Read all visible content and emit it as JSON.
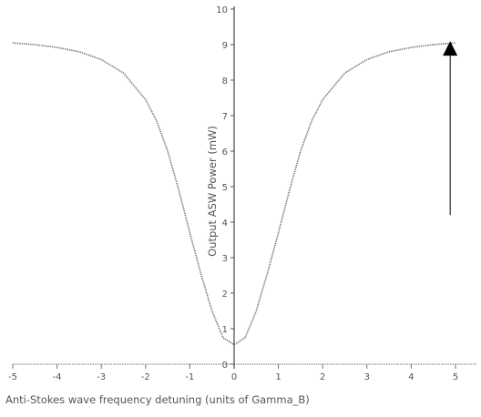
{
  "chart_data": {
    "type": "line",
    "title": "",
    "xlabel": "Anti-Stokes wave frequency detuning (units of Gamma_B)",
    "ylabel": "Output ASW Power (mW)",
    "xlim": [
      -5,
      5
    ],
    "ylim": [
      0,
      10
    ],
    "x_ticks": [
      -5,
      -4,
      -3,
      -2,
      -1,
      0,
      1,
      2,
      3,
      4,
      5
    ],
    "x_tick_labels": [
      "-5",
      "-4",
      "-3",
      "-2",
      "-1",
      "0",
      "1",
      "2",
      "3",
      "4",
      "5"
    ],
    "y_ticks": [
      0,
      1,
      2,
      3,
      4,
      5,
      6,
      7,
      8,
      9,
      10
    ],
    "y_tick_labels": [
      "0",
      "1",
      "2",
      "3",
      "4",
      "5",
      "6",
      "7",
      "8",
      "9",
      "10"
    ],
    "grid": false,
    "series": [
      {
        "x": [
          -5,
          -4.5,
          -4,
          -3.5,
          -3,
          -2.5,
          -2,
          -1.75,
          -1.5,
          -1.25,
          -1,
          -0.75,
          -0.5,
          -0.25,
          0,
          0.25,
          0.5,
          0.75,
          1,
          1.25,
          1.5,
          1.75,
          2,
          2.5,
          3,
          3.5,
          4,
          4.5,
          5
        ],
        "y": [
          9.05,
          9.0,
          8.92,
          8.8,
          8.58,
          8.2,
          7.45,
          6.85,
          6.0,
          4.9,
          3.7,
          2.55,
          1.5,
          0.75,
          0.55,
          0.75,
          1.5,
          2.55,
          3.7,
          4.9,
          6.0,
          6.85,
          7.45,
          8.2,
          8.58,
          8.8,
          8.92,
          9.0,
          9.05
        ],
        "color": "#777777"
      }
    ],
    "annotations": [
      {
        "type": "arrow",
        "x": 4.88,
        "y_from": 4.2,
        "y_to": 9.1,
        "color": "#000000"
      }
    ]
  }
}
